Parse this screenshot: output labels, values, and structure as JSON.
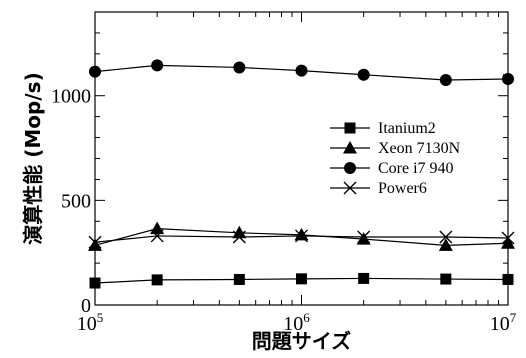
{
  "chart_data": {
    "type": "line",
    "title": "",
    "xlabel": "問題サイズ",
    "ylabel": "演算性能 (Mop/s)",
    "xscale": "log",
    "xlim": [
      100000,
      10000000
    ],
    "ylim": [
      0,
      1400
    ],
    "x_ticks": [
      {
        "value": 100000,
        "base": "10",
        "exp": "5"
      },
      {
        "value": 1000000,
        "base": "10",
        "exp": "6"
      },
      {
        "value": 10000000,
        "base": "10",
        "exp": "7"
      }
    ],
    "y_ticks": [
      {
        "value": 0,
        "label": "0"
      },
      {
        "value": 500,
        "label": "500"
      },
      {
        "value": 1000,
        "label": "1000"
      }
    ],
    "grid": false,
    "legend_position": "right",
    "x": [
      100000,
      200000,
      500000,
      1000000,
      2000000,
      5000000,
      10000000
    ],
    "series": [
      {
        "name": "Itanium2",
        "marker": "square",
        "values": [
          105,
          120,
          122,
          125,
          127,
          124,
          122
        ]
      },
      {
        "name": "Xeon 7130N",
        "marker": "triangle",
        "values": [
          285,
          365,
          345,
          335,
          315,
          285,
          295
        ]
      },
      {
        "name": "Core i7 940",
        "marker": "circle",
        "values": [
          1115,
          1145,
          1135,
          1120,
          1100,
          1075,
          1080
        ]
      },
      {
        "name": "Power6",
        "marker": "x",
        "values": [
          300,
          330,
          325,
          330,
          325,
          325,
          320
        ]
      }
    ]
  }
}
